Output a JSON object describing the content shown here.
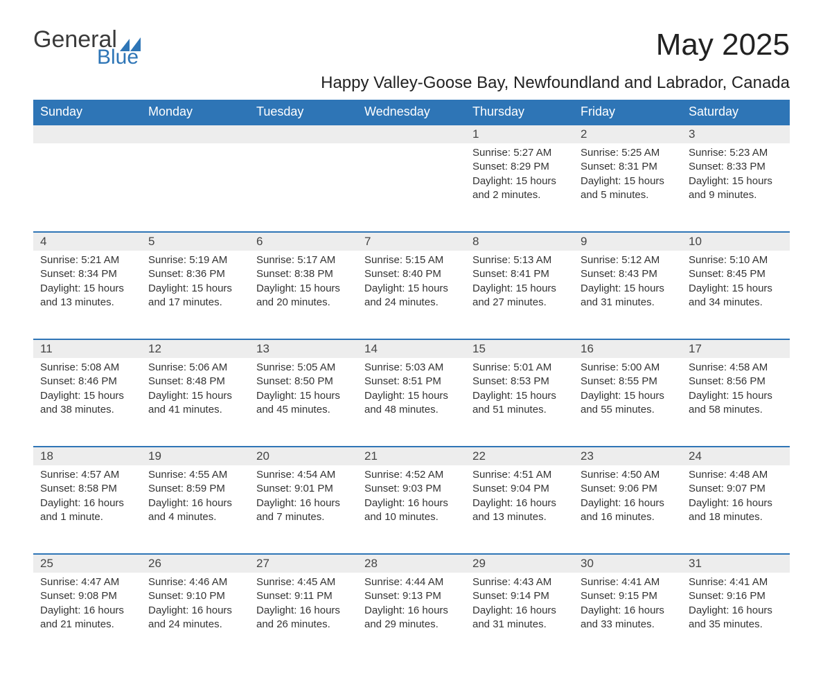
{
  "logo": {
    "general": "General",
    "blue": "Blue"
  },
  "title": "May 2025",
  "location": "Happy Valley-Goose Bay, Newfoundland and Labrador, Canada",
  "colors": {
    "header_bg": "#2e75b6",
    "header_text": "#ffffff",
    "daynum_bg": "#ededed",
    "border_top": "#2e75b6",
    "body_text": "#333333",
    "logo_blue": "#2e75b6",
    "background": "#ffffff"
  },
  "daysOfWeek": [
    "Sunday",
    "Monday",
    "Tuesday",
    "Wednesday",
    "Thursday",
    "Friday",
    "Saturday"
  ],
  "weeks": [
    {
      "nums": [
        "",
        "",
        "",
        "",
        "1",
        "2",
        "3"
      ],
      "cells": [
        null,
        null,
        null,
        null,
        {
          "sunrise": "5:27 AM",
          "sunset": "8:29 PM",
          "daylight": "15 hours and 2 minutes."
        },
        {
          "sunrise": "5:25 AM",
          "sunset": "8:31 PM",
          "daylight": "15 hours and 5 minutes."
        },
        {
          "sunrise": "5:23 AM",
          "sunset": "8:33 PM",
          "daylight": "15 hours and 9 minutes."
        }
      ]
    },
    {
      "nums": [
        "4",
        "5",
        "6",
        "7",
        "8",
        "9",
        "10"
      ],
      "cells": [
        {
          "sunrise": "5:21 AM",
          "sunset": "8:34 PM",
          "daylight": "15 hours and 13 minutes."
        },
        {
          "sunrise": "5:19 AM",
          "sunset": "8:36 PM",
          "daylight": "15 hours and 17 minutes."
        },
        {
          "sunrise": "5:17 AM",
          "sunset": "8:38 PM",
          "daylight": "15 hours and 20 minutes."
        },
        {
          "sunrise": "5:15 AM",
          "sunset": "8:40 PM",
          "daylight": "15 hours and 24 minutes."
        },
        {
          "sunrise": "5:13 AM",
          "sunset": "8:41 PM",
          "daylight": "15 hours and 27 minutes."
        },
        {
          "sunrise": "5:12 AM",
          "sunset": "8:43 PM",
          "daylight": "15 hours and 31 minutes."
        },
        {
          "sunrise": "5:10 AM",
          "sunset": "8:45 PM",
          "daylight": "15 hours and 34 minutes."
        }
      ]
    },
    {
      "nums": [
        "11",
        "12",
        "13",
        "14",
        "15",
        "16",
        "17"
      ],
      "cells": [
        {
          "sunrise": "5:08 AM",
          "sunset": "8:46 PM",
          "daylight": "15 hours and 38 minutes."
        },
        {
          "sunrise": "5:06 AM",
          "sunset": "8:48 PM",
          "daylight": "15 hours and 41 minutes."
        },
        {
          "sunrise": "5:05 AM",
          "sunset": "8:50 PM",
          "daylight": "15 hours and 45 minutes."
        },
        {
          "sunrise": "5:03 AM",
          "sunset": "8:51 PM",
          "daylight": "15 hours and 48 minutes."
        },
        {
          "sunrise": "5:01 AM",
          "sunset": "8:53 PM",
          "daylight": "15 hours and 51 minutes."
        },
        {
          "sunrise": "5:00 AM",
          "sunset": "8:55 PM",
          "daylight": "15 hours and 55 minutes."
        },
        {
          "sunrise": "4:58 AM",
          "sunset": "8:56 PM",
          "daylight": "15 hours and 58 minutes."
        }
      ]
    },
    {
      "nums": [
        "18",
        "19",
        "20",
        "21",
        "22",
        "23",
        "24"
      ],
      "cells": [
        {
          "sunrise": "4:57 AM",
          "sunset": "8:58 PM",
          "daylight": "16 hours and 1 minute."
        },
        {
          "sunrise": "4:55 AM",
          "sunset": "8:59 PM",
          "daylight": "16 hours and 4 minutes."
        },
        {
          "sunrise": "4:54 AM",
          "sunset": "9:01 PM",
          "daylight": "16 hours and 7 minutes."
        },
        {
          "sunrise": "4:52 AM",
          "sunset": "9:03 PM",
          "daylight": "16 hours and 10 minutes."
        },
        {
          "sunrise": "4:51 AM",
          "sunset": "9:04 PM",
          "daylight": "16 hours and 13 minutes."
        },
        {
          "sunrise": "4:50 AM",
          "sunset": "9:06 PM",
          "daylight": "16 hours and 16 minutes."
        },
        {
          "sunrise": "4:48 AM",
          "sunset": "9:07 PM",
          "daylight": "16 hours and 18 minutes."
        }
      ]
    },
    {
      "nums": [
        "25",
        "26",
        "27",
        "28",
        "29",
        "30",
        "31"
      ],
      "cells": [
        {
          "sunrise": "4:47 AM",
          "sunset": "9:08 PM",
          "daylight": "16 hours and 21 minutes."
        },
        {
          "sunrise": "4:46 AM",
          "sunset": "9:10 PM",
          "daylight": "16 hours and 24 minutes."
        },
        {
          "sunrise": "4:45 AM",
          "sunset": "9:11 PM",
          "daylight": "16 hours and 26 minutes."
        },
        {
          "sunrise": "4:44 AM",
          "sunset": "9:13 PM",
          "daylight": "16 hours and 29 minutes."
        },
        {
          "sunrise": "4:43 AM",
          "sunset": "9:14 PM",
          "daylight": "16 hours and 31 minutes."
        },
        {
          "sunrise": "4:41 AM",
          "sunset": "9:15 PM",
          "daylight": "16 hours and 33 minutes."
        },
        {
          "sunrise": "4:41 AM",
          "sunset": "9:16 PM",
          "daylight": "16 hours and 35 minutes."
        }
      ]
    }
  ],
  "labels": {
    "sunrise": "Sunrise: ",
    "sunset": "Sunset: ",
    "daylight": "Daylight: "
  }
}
